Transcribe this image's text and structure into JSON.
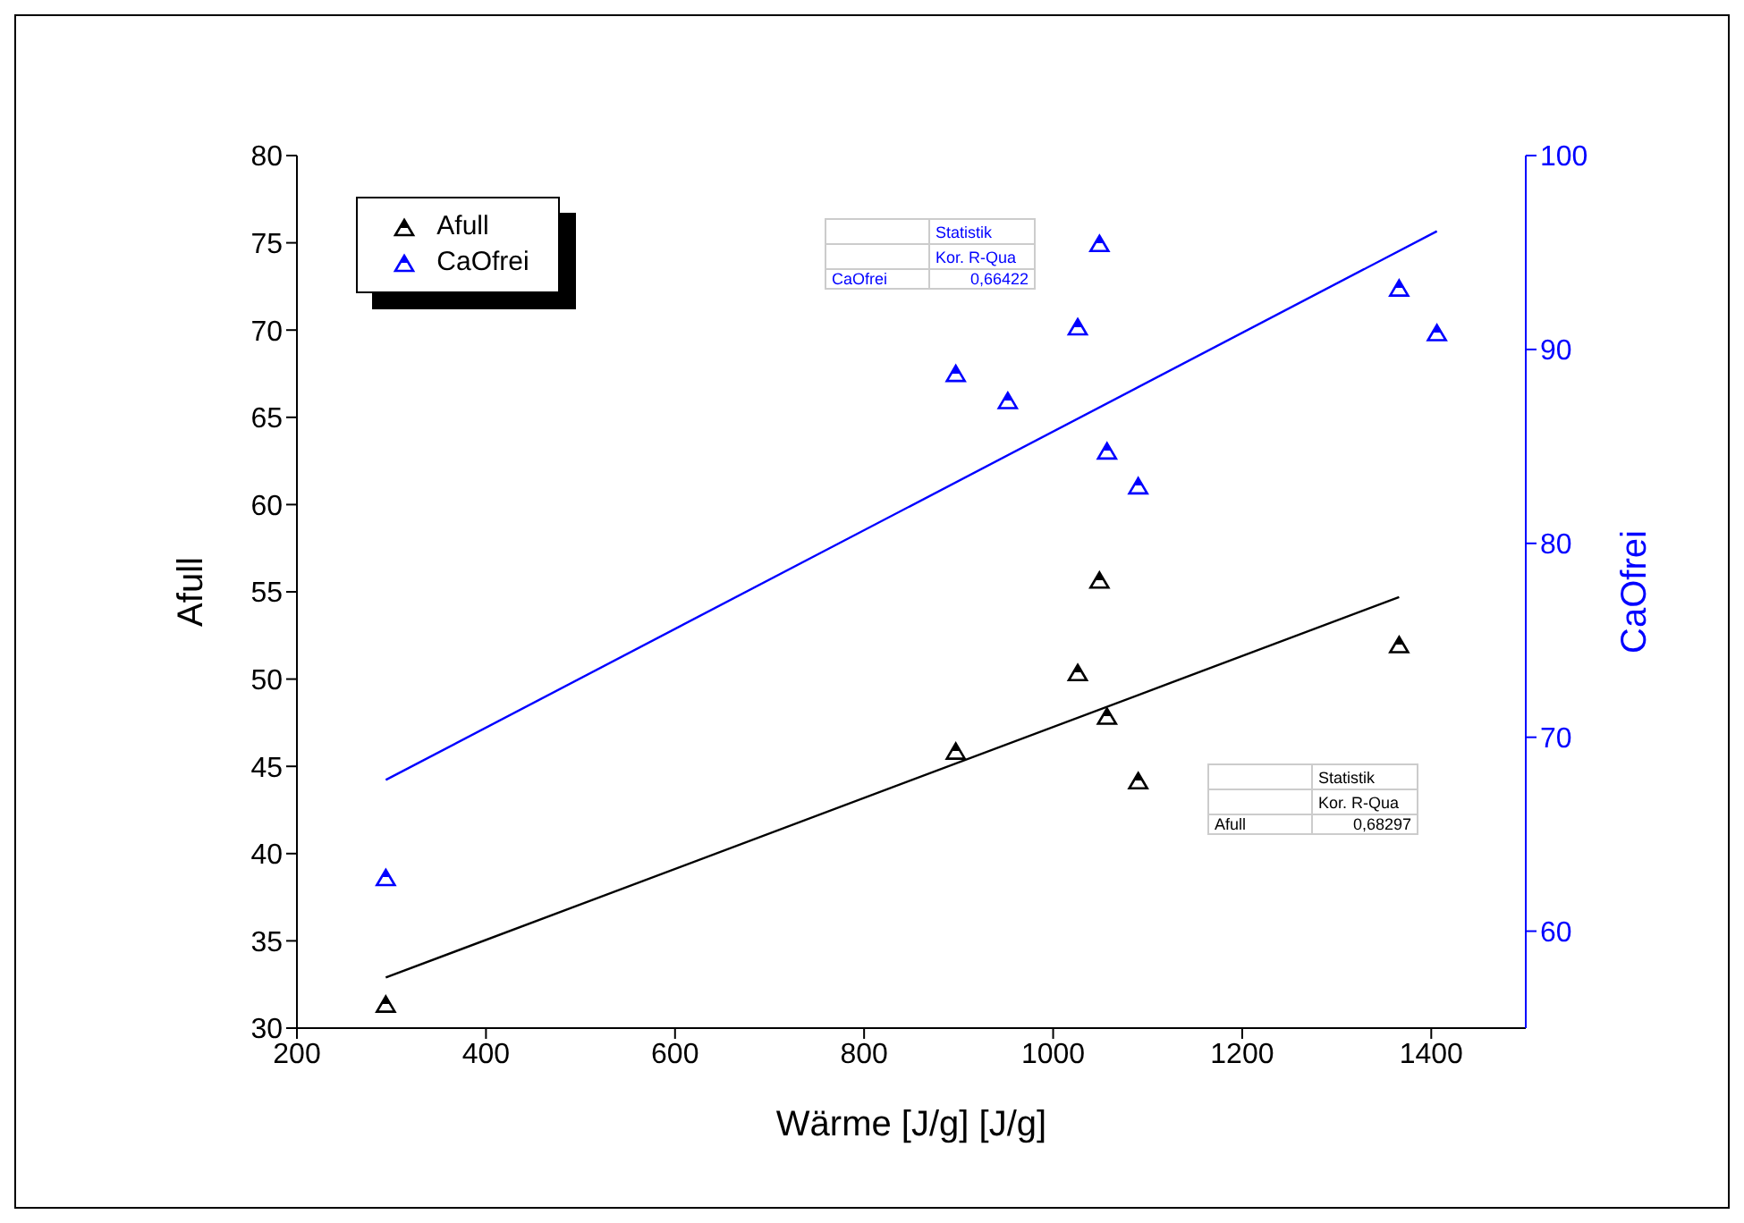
{
  "chart_data": {
    "type": "scatter",
    "xlabel": "Wärme [J/g] [J/g]",
    "ylabel": "Afull",
    "y2label": "CaOfrei",
    "xlim": [
      200,
      1500
    ],
    "xticks": [
      200,
      400,
      600,
      800,
      1000,
      1200,
      1400
    ],
    "ylim": [
      30,
      80
    ],
    "yticks": [
      30,
      35,
      40,
      45,
      50,
      55,
      60,
      65,
      70,
      75,
      80
    ],
    "y2lim": [
      55,
      100
    ],
    "y2ticks": [
      60,
      70,
      80,
      90,
      100
    ],
    "grid": false,
    "legend": "top left",
    "marker": "triangle",
    "series": [
      {
        "name": "Afull",
        "color": "#000000",
        "x": [
          294,
          897,
          1026,
          1049,
          1057,
          1090,
          1366
        ],
        "values": [
          31.3,
          45.8,
          50.3,
          55.6,
          47.8,
          44.1,
          51.9
        ]
      },
      {
        "name": "CaOfrei",
        "axis": "y2",
        "color": "#0000ff",
        "x": [
          294,
          897,
          952,
          1026,
          1049,
          1057,
          1090,
          1366,
          1406
        ],
        "values": [
          62.7,
          88.7,
          87.3,
          91.1,
          95.4,
          84.7,
          82.9,
          93.1,
          90.8
        ]
      },
      {
        "type": "line",
        "marker": "none",
        "color": "#000000",
        "x": [
          294,
          1366
        ],
        "values": [
          32.9,
          54.7
        ]
      },
      {
        "type": "line",
        "marker": "none",
        "axis": "y2",
        "color": "#0000ff",
        "x": [
          294,
          1406
        ],
        "values": [
          67.8,
          96.1
        ]
      }
    ],
    "annotations": [
      "Statistik",
      "Kor. R-Qua",
      "CaOfrei",
      "0,66422",
      "Statistik",
      "Kor. R-Qua",
      "Afull",
      "0,68297"
    ]
  }
}
